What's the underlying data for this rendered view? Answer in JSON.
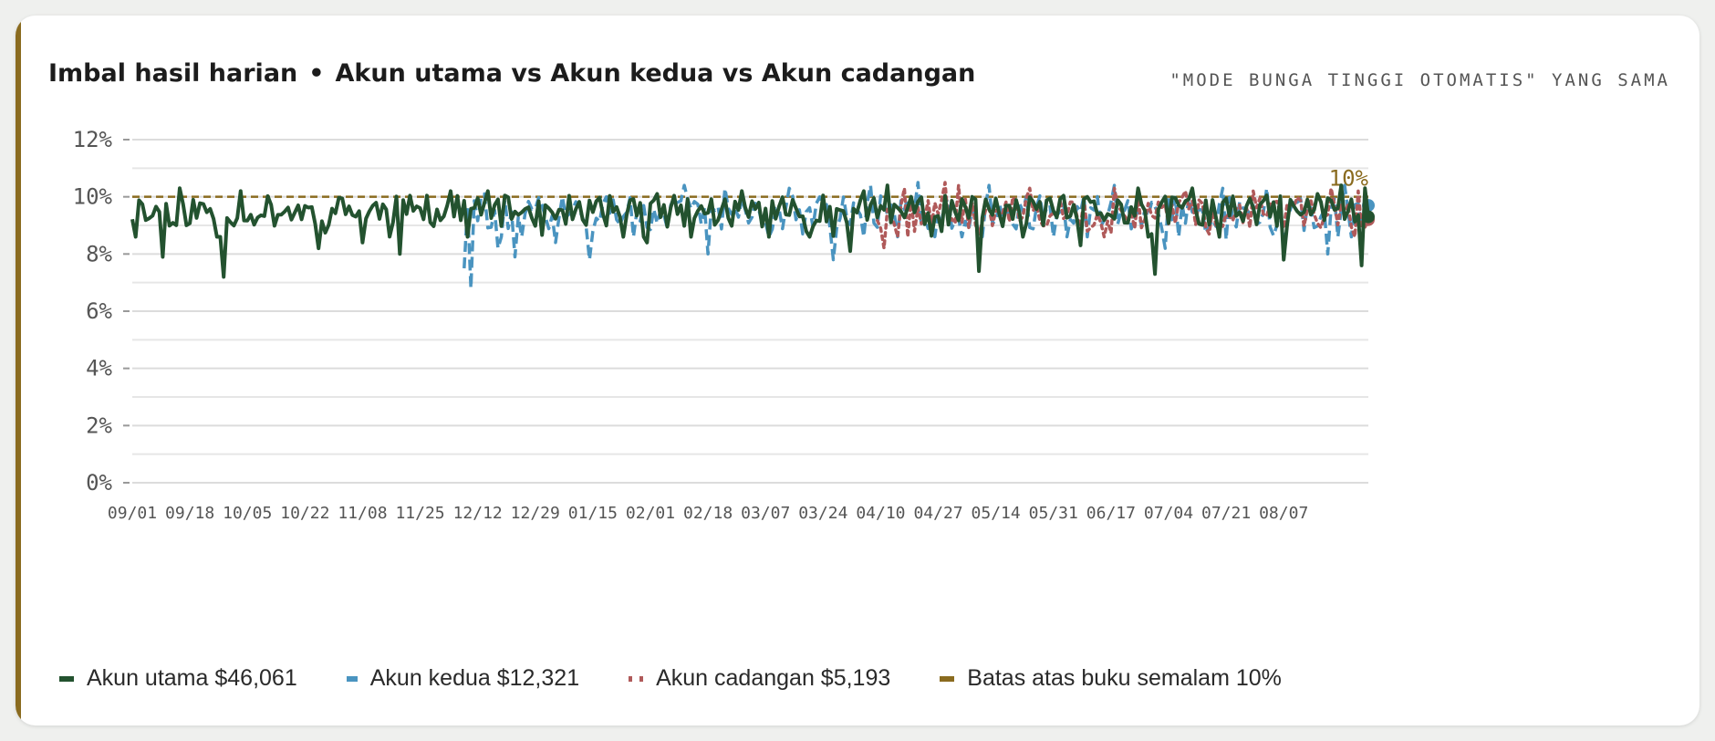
{
  "header": {
    "title_part1": "Imbal hasil harian",
    "separator": "•",
    "title_part2": "Akun utama vs Akun kedua vs Akun cadangan",
    "subtitle": "\"MODE BUNGA TINGGI OTOMATIS\" YANG SAMA"
  },
  "colors": {
    "primary": "#23522f",
    "secondary": "#4a94c0",
    "reserve": "#b05a5a",
    "cap": "#8a6b1f"
  },
  "chart_data": {
    "type": "line",
    "title": "Imbal hasil harian • Akun utama vs Akun kedua vs Akun cadangan",
    "ylim": [
      0,
      12
    ],
    "y_ticks": [
      "0%",
      "2%",
      "4%",
      "6%",
      "8%",
      "10%",
      "12%"
    ],
    "x_ticks": [
      "09/01",
      "09/18",
      "10/05",
      "10/22",
      "11/08",
      "11/25",
      "12/12",
      "12/29",
      "01/15",
      "02/01",
      "02/18",
      "03/07",
      "03/24",
      "04/10",
      "04/27",
      "05/14",
      "05/31",
      "06/17",
      "07/04",
      "07/21",
      "08/07"
    ],
    "days_total": 365,
    "grid": true,
    "legend_position": "bottom",
    "cap_line": {
      "value": 10,
      "label": "10%"
    },
    "series": [
      {
        "name": "Akun utama",
        "legend": "Akun utama $46,061",
        "style": "solid",
        "start_day": 0,
        "base": 9.5,
        "spread": 0.55,
        "dips": [
          [
            9,
            7.9
          ],
          [
            27,
            7.2
          ],
          [
            55,
            8.2
          ],
          [
            68,
            8.4
          ],
          [
            79,
            8.0
          ],
          [
            123,
            9.6
          ],
          [
            133,
            9.2
          ],
          [
            152,
            8.4
          ],
          [
            165,
            8.6
          ],
          [
            180,
            7.6
          ],
          [
            212,
            8.1
          ],
          [
            250,
            7.4
          ],
          [
            280,
            8.3
          ],
          [
            302,
            7.3
          ],
          [
            340,
            7.8
          ],
          [
            363,
            7.6
          ]
        ],
        "peaks": [
          [
            14,
            10.3
          ],
          [
            32,
            10.2
          ],
          [
            94,
            10.2
          ],
          [
            105,
            10.2
          ],
          [
            155,
            10.1
          ],
          [
            180,
            10.2
          ],
          [
            216,
            10.2
          ],
          [
            223,
            10.4
          ],
          [
            297,
            10.3
          ],
          [
            313,
            10.3
          ],
          [
            350,
            10.1
          ],
          [
            357,
            10.4
          ],
          [
            364,
            10.3
          ]
        ],
        "end_value": 9.3
      },
      {
        "name": "Akun kedua",
        "legend": "Akun kedua $12,321",
        "style": "dashed",
        "start_day": 98,
        "base": 9.45,
        "spread": 0.6,
        "dips": [
          [
            98,
            7.5
          ],
          [
            100,
            6.8
          ],
          [
            108,
            8.2
          ],
          [
            113,
            7.9
          ],
          [
            125,
            8.4
          ],
          [
            135,
            7.8
          ],
          [
            170,
            8.0
          ],
          [
            198,
            8.7
          ],
          [
            207,
            7.8
          ],
          [
            242,
            8.9
          ],
          [
            282,
            8.6
          ],
          [
            305,
            8.2
          ],
          [
            323,
            8.5
          ],
          [
            340,
            8.2
          ],
          [
            353,
            8.0
          ]
        ],
        "peaks": [
          [
            104,
            10.1
          ],
          [
            140,
            10.0
          ],
          [
            163,
            10.4
          ],
          [
            175,
            10.3
          ],
          [
            194,
            10.3
          ],
          [
            218,
            10.4
          ],
          [
            232,
            10.5
          ],
          [
            253,
            10.4
          ],
          [
            290,
            10.4
          ],
          [
            322,
            10.3
          ],
          [
            335,
            10.3
          ],
          [
            358,
            10.4
          ]
        ],
        "end_value": 9.7
      },
      {
        "name": "Akun cadangan",
        "legend": "Akun cadangan $5,193",
        "style": "dotted",
        "start_day": 220,
        "base": 9.45,
        "spread": 0.55,
        "dips": [
          [
            222,
            8.2
          ],
          [
            226,
            8.6
          ],
          [
            236,
            9.0
          ],
          [
            250,
            8.7
          ],
          [
            282,
            8.8
          ],
          [
            296,
            8.9
          ],
          [
            318,
            8.7
          ],
          [
            340,
            8.9
          ]
        ],
        "peaks": [
          [
            228,
            10.3
          ],
          [
            240,
            10.5
          ],
          [
            244,
            10.4
          ],
          [
            265,
            10.3
          ],
          [
            290,
            10.3
          ],
          [
            311,
            10.2
          ],
          [
            331,
            10.2
          ],
          [
            354,
            10.3
          ],
          [
            362,
            10.2
          ]
        ],
        "end_value": 9.2
      },
      {
        "name": "Batas atas buku semalam 10%",
        "legend": "Batas atas buku semalam 10%",
        "style": "cap",
        "value": 10
      }
    ]
  }
}
